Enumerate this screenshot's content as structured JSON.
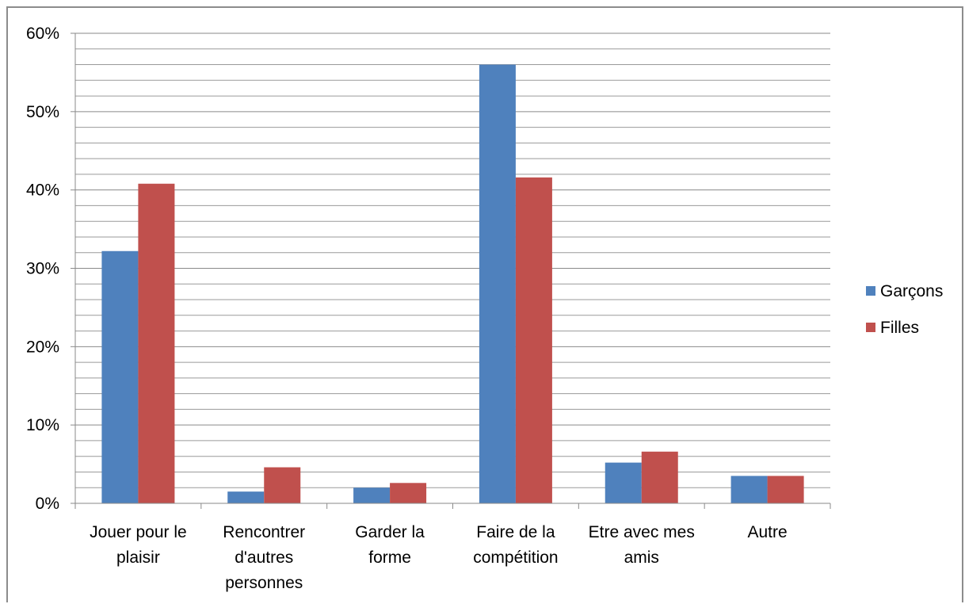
{
  "chart_data": {
    "type": "bar",
    "title": "",
    "xlabel": "",
    "ylabel": "",
    "categories": [
      [
        "Jouer pour le",
        "plaisir"
      ],
      [
        "Rencontrer",
        "d'autres",
        "personnes"
      ],
      [
        "Garder la",
        "forme"
      ],
      [
        "Faire de la",
        "compétition"
      ],
      [
        "Etre avec mes",
        "amis"
      ],
      [
        "Autre"
      ]
    ],
    "series": [
      {
        "name": "Garçons",
        "color": "#4f81bd",
        "values": [
          32.2,
          1.5,
          2.0,
          56.0,
          5.2,
          3.5
        ]
      },
      {
        "name": "Filles",
        "color": "#c0504d",
        "values": [
          40.8,
          4.6,
          2.6,
          41.6,
          6.6,
          3.5
        ]
      }
    ],
    "ylim": [
      0,
      60
    ],
    "yticks": [
      "0%",
      "10%",
      "20%",
      "30%",
      "40%",
      "50%",
      "60%"
    ],
    "grid": true,
    "legend": "right"
  }
}
